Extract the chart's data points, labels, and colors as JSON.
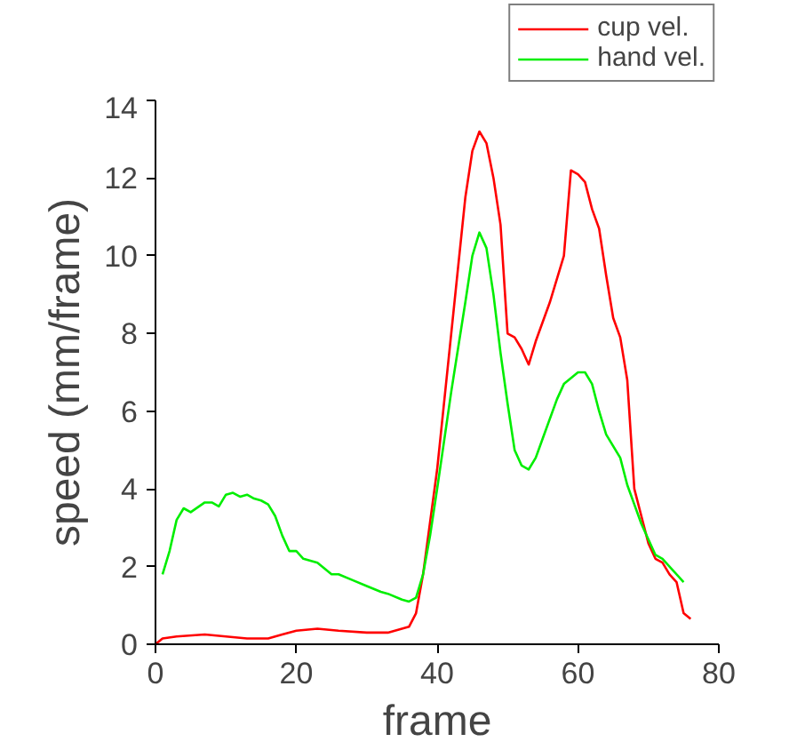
{
  "chart_data": {
    "type": "line",
    "xlabel": "frame",
    "ylabel": "speed (mm/frame)",
    "xlim": [
      0,
      80
    ],
    "ylim": [
      0,
      14
    ],
    "xticks": [
      0,
      20,
      40,
      60,
      80
    ],
    "yticks": [
      0,
      2,
      4,
      6,
      8,
      10,
      12,
      14
    ],
    "grid": false,
    "legend": "top right",
    "series": [
      {
        "name": "cup vel.",
        "color": "#ff0000",
        "x": [
          0,
          1,
          3,
          7,
          10,
          13,
          16,
          18,
          20,
          23,
          26,
          30,
          33,
          35,
          36,
          37,
          38,
          40,
          42,
          44,
          45,
          46,
          47,
          48,
          49,
          50,
          51,
          52,
          53,
          54,
          56,
          58,
          59,
          60,
          61,
          62,
          63,
          64,
          65,
          66,
          67,
          68,
          69,
          70,
          71,
          72,
          73,
          74,
          75,
          76
        ],
        "values": [
          0,
          0.15,
          0.2,
          0.25,
          0.2,
          0.15,
          0.15,
          0.25,
          0.35,
          0.4,
          0.35,
          0.3,
          0.3,
          0.4,
          0.45,
          0.8,
          1.8,
          4.5,
          8.0,
          11.5,
          12.7,
          13.2,
          12.9,
          12.0,
          10.8,
          8.0,
          7.9,
          7.6,
          7.2,
          7.8,
          8.8,
          10.0,
          12.2,
          12.1,
          11.9,
          11.2,
          10.7,
          9.5,
          8.4,
          7.9,
          6.8,
          4.0,
          3.3,
          2.6,
          2.2,
          2.1,
          1.8,
          1.6,
          0.8,
          0.65
        ]
      },
      {
        "name": "hand vel.",
        "color": "#00ee00",
        "x": [
          1,
          2,
          3,
          4,
          5,
          7,
          8,
          9,
          10,
          11,
          12,
          13,
          14,
          15,
          16,
          17,
          18,
          19,
          20,
          21,
          22,
          23,
          25,
          26,
          28,
          30,
          32,
          33,
          35,
          36,
          37,
          38,
          39,
          40,
          42,
          44,
          45,
          46,
          47,
          48,
          49,
          50,
          51,
          52,
          53,
          54,
          55,
          57,
          58,
          60,
          61,
          62,
          63,
          64,
          66,
          67,
          68,
          69,
          70,
          71,
          72,
          73,
          75
        ],
        "values": [
          1.8,
          2.4,
          3.2,
          3.5,
          3.4,
          3.65,
          3.65,
          3.55,
          3.85,
          3.9,
          3.8,
          3.85,
          3.75,
          3.7,
          3.6,
          3.3,
          2.8,
          2.4,
          2.4,
          2.2,
          2.15,
          2.1,
          1.8,
          1.8,
          1.65,
          1.5,
          1.35,
          1.3,
          1.15,
          1.1,
          1.2,
          1.8,
          2.8,
          4.0,
          6.5,
          8.8,
          10.0,
          10.6,
          10.2,
          9.0,
          7.5,
          6.2,
          5.0,
          4.6,
          4.5,
          4.8,
          5.3,
          6.3,
          6.7,
          7.0,
          7.0,
          6.7,
          6.0,
          5.4,
          4.8,
          4.1,
          3.6,
          3.1,
          2.7,
          2.3,
          2.2,
          2.0,
          1.6
        ]
      }
    ]
  }
}
